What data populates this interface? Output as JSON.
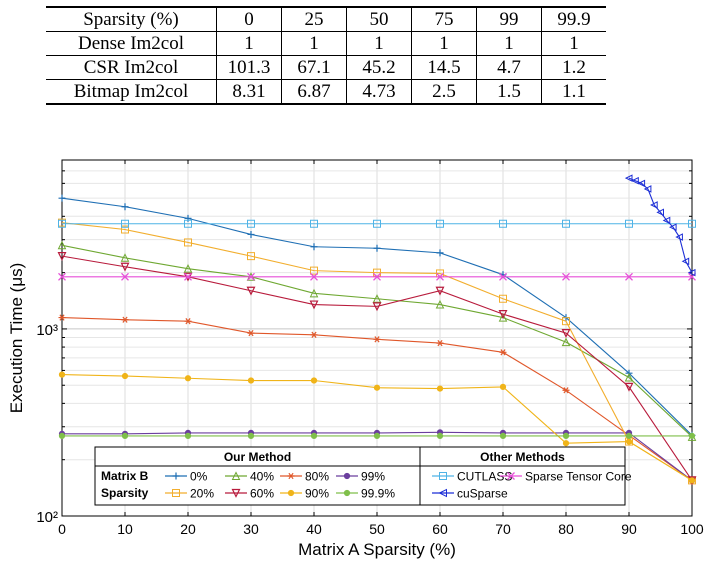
{
  "table": {
    "header": [
      "Sparsity (%)",
      "0",
      "25",
      "50",
      "75",
      "99",
      "99.9"
    ],
    "rows": [
      [
        "Dense Im2col",
        "1",
        "1",
        "1",
        "1",
        "1",
        "1"
      ],
      [
        "CSR Im2col",
        "101.3",
        "67.1",
        "45.2",
        "14.5",
        "4.7",
        "1.2"
      ],
      [
        "Bitmap Im2col",
        "8.31",
        "6.87",
        "4.73",
        "2.5",
        "1.5",
        "1.1"
      ]
    ]
  },
  "chart_data": {
    "type": "line",
    "xlabel": "Matrix A Sparsity (%)",
    "ylabel": "Execution Time (μs)",
    "yscale": "log",
    "xlim": [
      0,
      100
    ],
    "ylim": [
      100,
      8000
    ],
    "x": [
      0,
      10,
      20,
      30,
      40,
      50,
      60,
      70,
      80,
      90,
      100
    ],
    "x_ticks": [
      "0",
      "10",
      "20",
      "30",
      "40",
      "50",
      "60",
      "70",
      "80",
      "90",
      "100"
    ],
    "y_ticks": [
      "10²",
      "10³"
    ],
    "grid": true,
    "legend": {
      "our_title": "Our Method",
      "other_title": "Other Methods",
      "group_label_1": "Matrix B",
      "group_label_2": "Sparsity"
    },
    "series": [
      {
        "name": "0%",
        "group": "ours",
        "color": "#1f6fb4",
        "marker": "plus",
        "values": [
          5000,
          4500,
          3900,
          3200,
          2750,
          2700,
          2550,
          1950,
          1150,
          580,
          270
        ]
      },
      {
        "name": "40%",
        "group": "ours",
        "color": "#6fa832",
        "marker": "triangle-up",
        "values": [
          2800,
          2400,
          2100,
          1900,
          1550,
          1450,
          1350,
          1150,
          850,
          550,
          265
        ]
      },
      {
        "name": "80%",
        "group": "ours",
        "color": "#e0572a",
        "marker": "asterisk",
        "values": [
          1150,
          1120,
          1100,
          950,
          930,
          880,
          840,
          750,
          470,
          270,
          155
        ]
      },
      {
        "name": "99%",
        "group": "ours",
        "color": "#6b3f9e",
        "marker": "dot",
        "values": [
          275,
          275,
          278,
          278,
          278,
          278,
          280,
          278,
          278,
          278,
          155
        ]
      },
      {
        "name": "20%",
        "group": "ours",
        "color": "#f2ae2e",
        "marker": "square",
        "values": [
          3700,
          3400,
          2900,
          2450,
          2050,
          2000,
          1980,
          1450,
          1100,
          250,
          155
        ]
      },
      {
        "name": "60%",
        "group": "ours",
        "color": "#b81b3c",
        "marker": "triangle-down",
        "values": [
          2450,
          2150,
          1900,
          1600,
          1350,
          1320,
          1600,
          1200,
          950,
          490,
          155
        ]
      },
      {
        "name": "90%",
        "group": "ours",
        "color": "#f0b419",
        "marker": "dot",
        "values": [
          570,
          560,
          545,
          530,
          530,
          485,
          480,
          490,
          245,
          250,
          155
        ]
      },
      {
        "name": "99.9%",
        "group": "ours",
        "color": "#7fbf4a",
        "marker": "dot",
        "values": [
          268,
          268,
          268,
          268,
          268,
          268,
          268,
          268,
          268,
          268,
          268
        ]
      },
      {
        "name": "CUTLASS",
        "group": "other",
        "color": "#4fb3e6",
        "marker": "square",
        "values": [
          3650,
          3650,
          3650,
          3650,
          3650,
          3650,
          3650,
          3650,
          3650,
          3650,
          3650
        ]
      },
      {
        "name": "Sparse Tensor Core",
        "group": "other",
        "color": "#e64fd8",
        "marker": "x",
        "values": [
          1900,
          1900,
          1900,
          1900,
          1900,
          1900,
          1900,
          1900,
          1900,
          1900,
          1900
        ]
      },
      {
        "name": "cuSparse",
        "group": "other",
        "color": "#1c2ed6",
        "marker": "triangle-left",
        "x": [
          90,
          91,
          92,
          93,
          94,
          95,
          96,
          97,
          98,
          99,
          100
        ],
        "values": [
          6400,
          6200,
          6000,
          5600,
          4600,
          4200,
          3800,
          3500,
          3100,
          2300,
          2000
        ]
      }
    ]
  }
}
